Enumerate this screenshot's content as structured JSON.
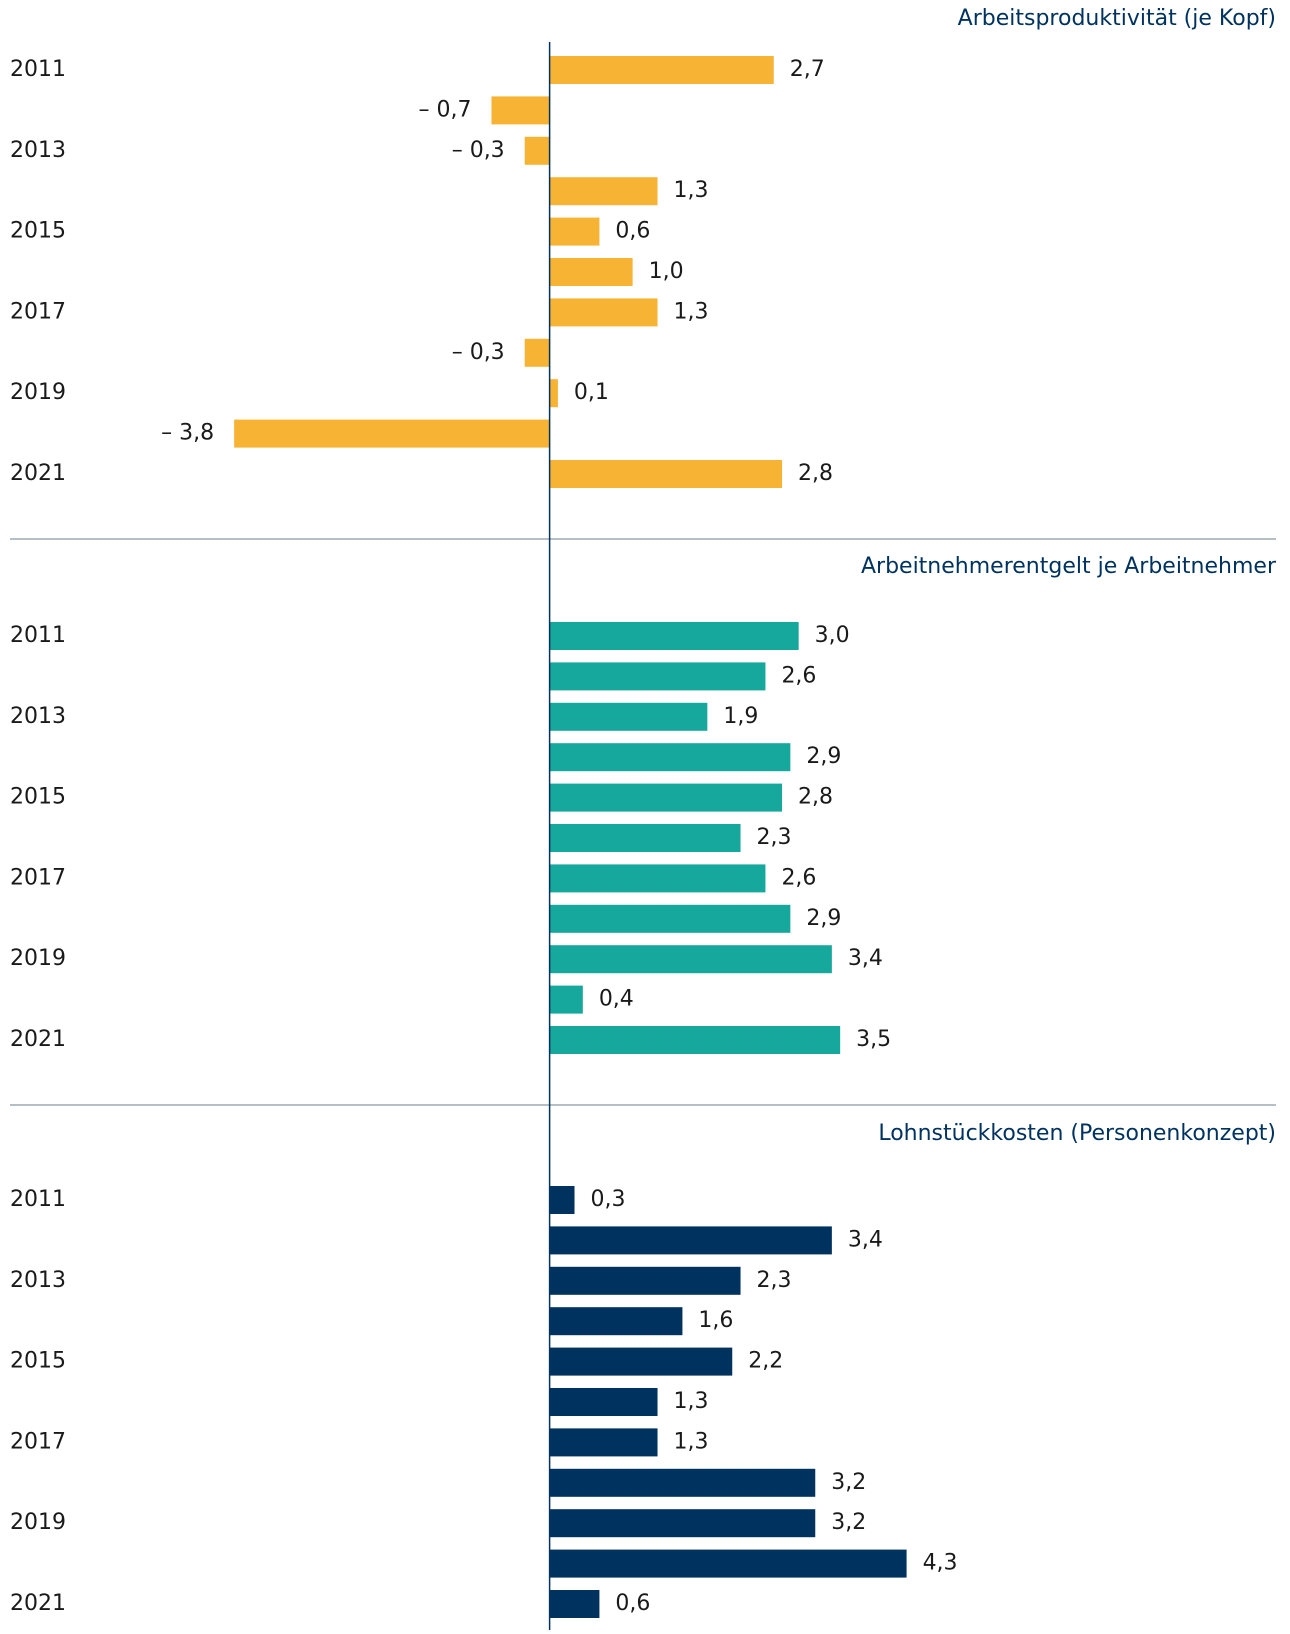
{
  "chart_data": [
    {
      "type": "bar",
      "title": "Arbeitsproduktivität (je Kopf)",
      "orientation": "horizontal",
      "color": "#f7b334",
      "categories": [
        "2011",
        null,
        "2013",
        null,
        "2015",
        null,
        "2017",
        null,
        "2019",
        null,
        "2021"
      ],
      "values": [
        2.7,
        -0.7,
        -0.3,
        1.3,
        0.6,
        1.0,
        1.3,
        -0.3,
        0.1,
        -3.8,
        2.8
      ],
      "value_labels": [
        "2,7",
        "– 0,7",
        "– 0,3",
        "1,3",
        "0,6",
        "1,0",
        "1,3",
        "– 0,3",
        "0,1",
        "– 3,8",
        "2,8"
      ],
      "xlim": [
        -6.5,
        8.75
      ]
    },
    {
      "type": "bar",
      "title": "Arbeitnehmerentgelt je Arbeitnehmer",
      "orientation": "horizontal",
      "color": "#16a89c",
      "categories": [
        "2011",
        null,
        "2013",
        null,
        "2015",
        null,
        "2017",
        null,
        "2019",
        null,
        "2021"
      ],
      "values": [
        3.0,
        2.6,
        1.9,
        2.9,
        2.8,
        2.3,
        2.6,
        2.9,
        3.4,
        0.4,
        3.5
      ],
      "value_labels": [
        "3,0",
        "2,6",
        "1,9",
        "2,9",
        "2,8",
        "2,3",
        "2,6",
        "2,9",
        "3,4",
        "0,4",
        "3,5"
      ],
      "xlim": [
        -6.5,
        8.75
      ]
    },
    {
      "type": "bar",
      "title": "Lohnstückkosten (Personenkonzept)",
      "orientation": "horizontal",
      "color": "#00325f",
      "categories": [
        "2011",
        null,
        "2013",
        null,
        "2015",
        null,
        "2017",
        null,
        "2019",
        null,
        "2021"
      ],
      "values": [
        0.3,
        3.4,
        2.3,
        1.6,
        2.2,
        1.3,
        1.3,
        3.2,
        3.2,
        4.3,
        0.6
      ],
      "value_labels": [
        "0,3",
        "3,4",
        "2,3",
        "1,6",
        "2,2",
        "1,3",
        "1,3",
        "3,2",
        "3,2",
        "4,3",
        "0,6"
      ],
      "xlim": [
        -6.5,
        8.75
      ]
    }
  ]
}
